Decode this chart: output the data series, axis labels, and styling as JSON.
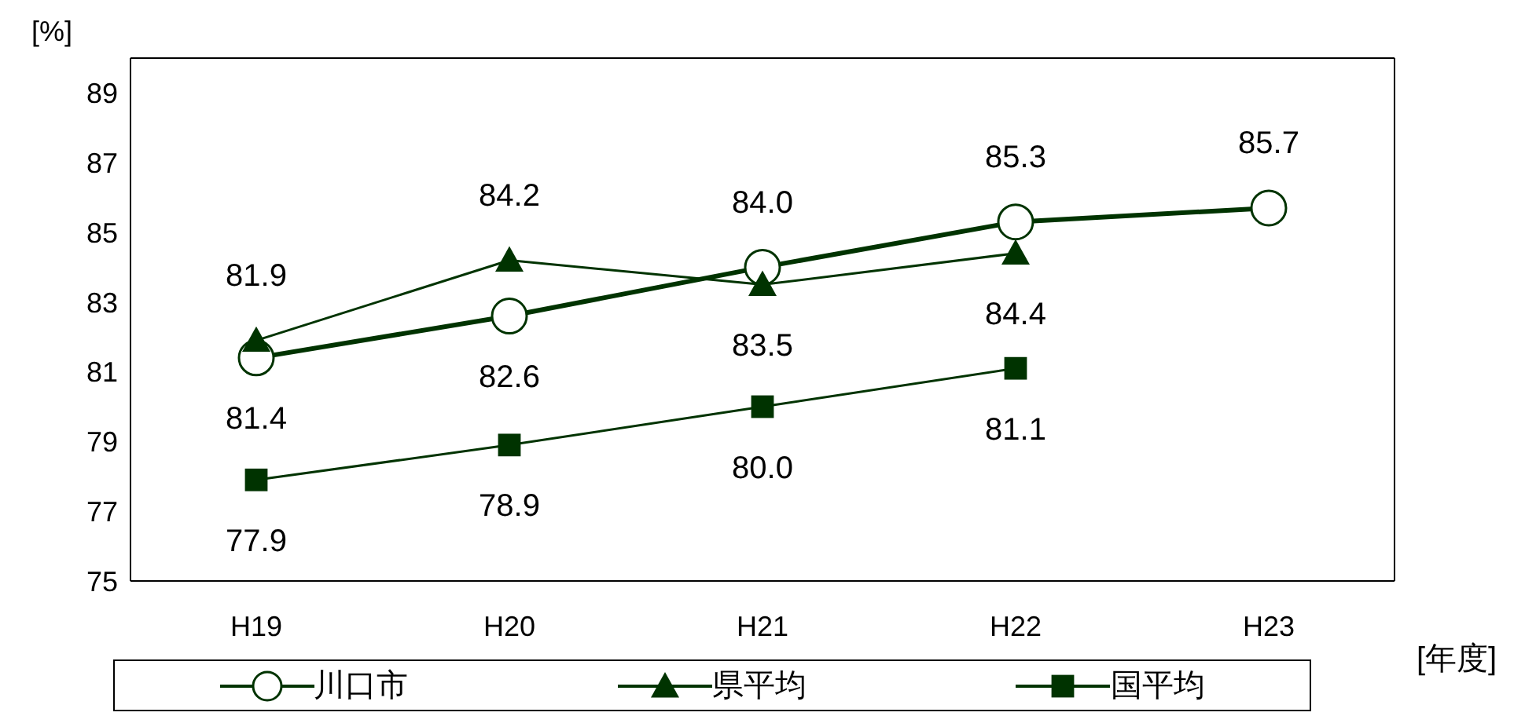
{
  "chart_data": {
    "type": "line",
    "ylabel": "[%]",
    "xlabel": "[年度]",
    "categories": [
      "H19",
      "H20",
      "H21",
      "H22",
      "H23"
    ],
    "series": [
      {
        "name": "川口市",
        "color": "#003300",
        "marker": "circle",
        "values": [
          81.4,
          82.6,
          84.0,
          85.3,
          85.7
        ],
        "value_labels": [
          "81.4",
          "82.6",
          "84.0",
          "85.3",
          "85.7"
        ]
      },
      {
        "name": "県平均",
        "color": "#003300",
        "marker": "triangle",
        "values": [
          81.9,
          84.2,
          83.5,
          84.4,
          null
        ],
        "value_labels": [
          "81.9",
          "84.2",
          "83.5",
          "84.4",
          null
        ]
      },
      {
        "name": "国平均",
        "color": "#003300",
        "marker": "square",
        "values": [
          77.9,
          78.9,
          80.0,
          81.1,
          null
        ],
        "value_labels": [
          "77.9",
          "78.9",
          "80.0",
          "81.1",
          null
        ]
      }
    ],
    "ylim": [
      75,
      90
    ],
    "yticks": [
      75,
      77,
      79,
      81,
      83,
      85,
      87,
      89
    ],
    "grid": false,
    "legend": "bottom"
  }
}
